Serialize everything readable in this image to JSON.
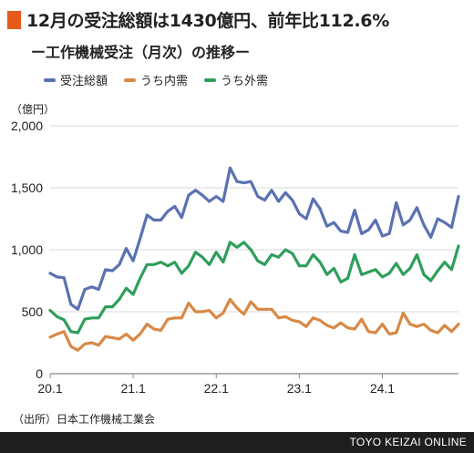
{
  "header": {
    "title": "12月の受注総額は1430億円、前年比112.6%",
    "subtitle": "ー工作機械受注（月次）の推移ー"
  },
  "footer": {
    "source": "（出所）日本工作機械工業会",
    "brand": "TOYO KEIZAI ONLINE"
  },
  "colors": {
    "accent": "#e85a1c",
    "grid": "#d9d9d9"
  },
  "chart_data": {
    "type": "line",
    "unit_label": "（億円）",
    "ylim": [
      0,
      2000
    ],
    "y_ticks": [
      0,
      500,
      1000,
      1500,
      2000
    ],
    "y_tick_labels": [
      "0",
      "500",
      "1,000",
      "1,500",
      "2,000"
    ],
    "x_ticks": [
      {
        "label": "20.1",
        "index": 0
      },
      {
        "label": "21.1",
        "index": 12
      },
      {
        "label": "22.1",
        "index": 24
      },
      {
        "label": "23.1",
        "index": 36
      },
      {
        "label": "24.1",
        "index": 48
      }
    ],
    "grid": true,
    "legend_position": "top",
    "series": [
      {
        "name": "受注総額",
        "color": "#5b71b2",
        "values": [
          810,
          780,
          775,
          560,
          520,
          680,
          700,
          680,
          840,
          830,
          880,
          1010,
          910,
          1090,
          1280,
          1240,
          1240,
          1310,
          1350,
          1260,
          1440,
          1480,
          1440,
          1390,
          1430,
          1390,
          1660,
          1550,
          1540,
          1550,
          1430,
          1400,
          1480,
          1390,
          1460,
          1400,
          1290,
          1250,
          1410,
          1330,
          1190,
          1220,
          1150,
          1140,
          1320,
          1130,
          1160,
          1240,
          1110,
          1130,
          1380,
          1200,
          1240,
          1340,
          1200,
          1100,
          1250,
          1220,
          1180,
          1430
        ]
      },
      {
        "name": "うち内需",
        "color": "#d88945",
        "values": [
          295,
          320,
          340,
          220,
          190,
          240,
          250,
          230,
          300,
          290,
          280,
          320,
          270,
          320,
          400,
          360,
          350,
          440,
          450,
          450,
          570,
          500,
          500,
          510,
          450,
          490,
          600,
          530,
          480,
          580,
          520,
          520,
          520,
          450,
          460,
          430,
          420,
          380,
          450,
          430,
          390,
          370,
          410,
          370,
          360,
          440,
          340,
          330,
          400,
          320,
          330,
          490,
          400,
          380,
          400,
          350,
          330,
          390,
          340,
          400
        ]
      },
      {
        "name": "うち外需",
        "color": "#2f9e5b",
        "values": [
          510,
          460,
          435,
          340,
          330,
          440,
          450,
          450,
          540,
          540,
          600,
          690,
          640,
          770,
          880,
          880,
          900,
          870,
          900,
          810,
          870,
          980,
          940,
          880,
          980,
          900,
          1060,
          1020,
          1060,
          1000,
          910,
          880,
          960,
          940,
          1000,
          970,
          870,
          870,
          960,
          900,
          800,
          850,
          740,
          770,
          960,
          800,
          820,
          840,
          780,
          810,
          890,
          800,
          850,
          960,
          800,
          750,
          830,
          900,
          840,
          1030
        ]
      }
    ]
  }
}
